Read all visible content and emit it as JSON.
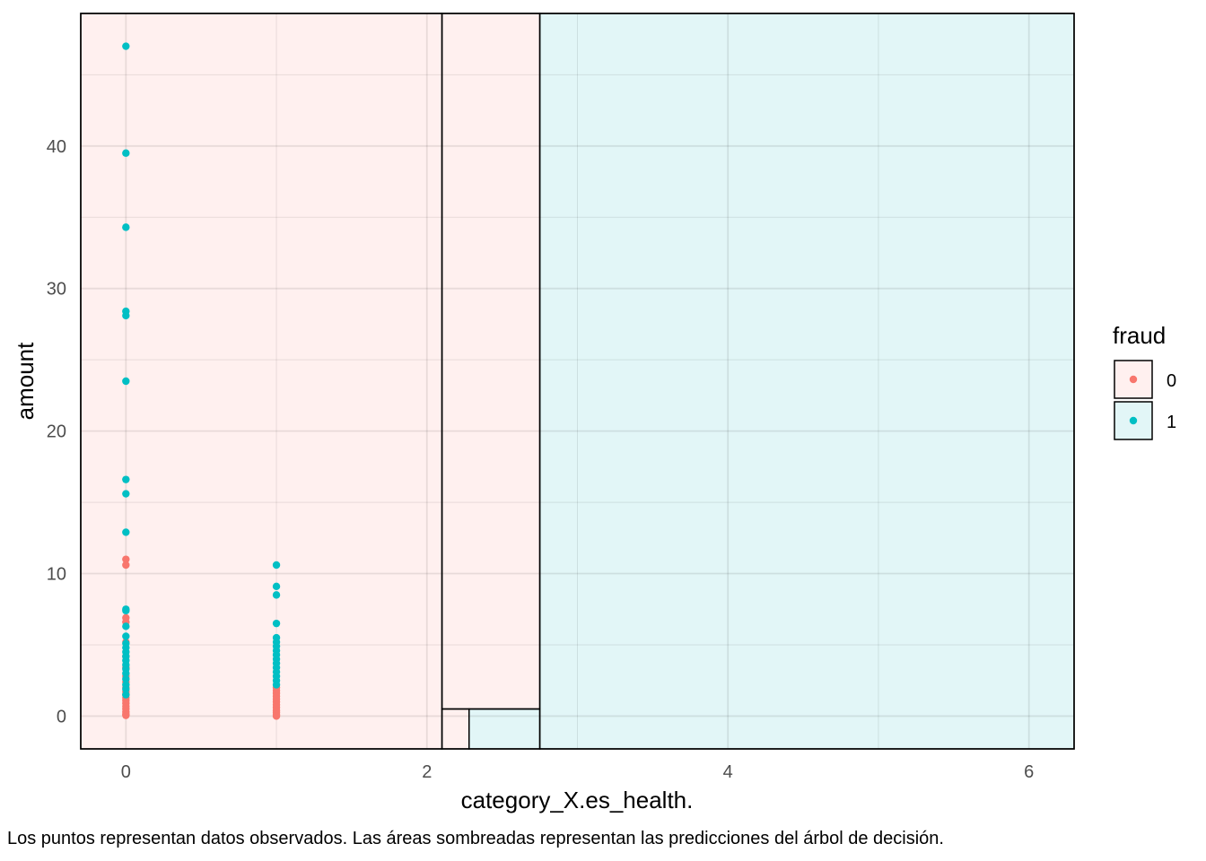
{
  "chart_data": {
    "type": "scatter",
    "xlabel": "category_X.es_health.",
    "ylabel": "amount",
    "caption": "Los puntos representan datos observados. Las áreas sombreadas representan las predicciones del árbol de decisión.",
    "xlim": [
      -0.3,
      6.3
    ],
    "ylim": [
      -2.3,
      49.3
    ],
    "x_ticks": [
      0,
      2,
      4,
      6
    ],
    "y_ticks": [
      0,
      10,
      20,
      30,
      40
    ],
    "grid": true,
    "legend": {
      "title": "fraud",
      "position": "right",
      "entries": [
        {
          "label": "0",
          "color": "#F8766D",
          "fill": "#FFF0EF"
        },
        {
          "label": "1",
          "color": "#00BFC4",
          "fill": "#E2F6F7"
        }
      ]
    },
    "regions": [
      {
        "class": "0",
        "x0": -0.3,
        "x1": 2.1,
        "y0": -2.3,
        "y1": 49.3
      },
      {
        "class": "0",
        "x0": 2.1,
        "x1": 2.75,
        "y0": 0.5,
        "y1": 49.3
      },
      {
        "class": "0",
        "x0": 2.1,
        "x1": 2.28,
        "y0": -2.3,
        "y1": 0.5
      },
      {
        "class": "1",
        "x0": 2.28,
        "x1": 2.75,
        "y0": -2.3,
        "y1": 0.5
      },
      {
        "class": "1",
        "x0": 2.75,
        "x1": 6.3,
        "y0": -2.3,
        "y1": 49.3
      }
    ],
    "series": [
      {
        "name": "0",
        "color": "#F8766D",
        "points": [
          [
            0,
            11.0
          ],
          [
            0,
            10.6
          ],
          [
            0,
            6.9
          ],
          [
            0,
            6.6
          ],
          [
            0,
            5.2
          ],
          [
            0,
            4.2
          ],
          [
            0,
            3.4
          ],
          [
            0,
            2.8
          ],
          [
            0,
            2.4
          ],
          [
            0,
            2.0
          ],
          [
            0,
            1.7
          ],
          [
            0,
            1.5
          ],
          [
            0,
            1.3
          ],
          [
            0,
            1.1
          ],
          [
            0,
            0.9
          ],
          [
            0,
            0.7
          ],
          [
            0,
            0.5
          ],
          [
            0,
            0.3
          ],
          [
            0,
            0.15
          ],
          [
            0,
            0.05
          ],
          [
            1,
            2.0
          ],
          [
            1,
            1.8
          ],
          [
            1,
            1.6
          ],
          [
            1,
            1.4
          ],
          [
            1,
            1.2
          ],
          [
            1,
            1.0
          ],
          [
            1,
            0.8
          ],
          [
            1,
            0.6
          ],
          [
            1,
            0.4
          ],
          [
            1,
            0.25
          ],
          [
            1,
            0.1
          ],
          [
            1,
            0.0
          ]
        ]
      },
      {
        "name": "1",
        "color": "#00BFC4",
        "points": [
          [
            0,
            47.0
          ],
          [
            0,
            39.5
          ],
          [
            0,
            34.3
          ],
          [
            0,
            28.4
          ],
          [
            0,
            28.1
          ],
          [
            0,
            23.5
          ],
          [
            0,
            16.6
          ],
          [
            0,
            15.6
          ],
          [
            0,
            12.9
          ],
          [
            0,
            7.5
          ],
          [
            0,
            7.4
          ],
          [
            0,
            6.3
          ],
          [
            0,
            5.6
          ],
          [
            0,
            5.1
          ],
          [
            0,
            4.8
          ],
          [
            0,
            4.5
          ],
          [
            0,
            4.2
          ],
          [
            0,
            3.9
          ],
          [
            0,
            3.6
          ],
          [
            0,
            3.3
          ],
          [
            0,
            3.0
          ],
          [
            0,
            2.6
          ],
          [
            0,
            2.2
          ],
          [
            0,
            1.9
          ],
          [
            0,
            1.5
          ],
          [
            1,
            10.6
          ],
          [
            1,
            9.1
          ],
          [
            1,
            8.5
          ],
          [
            1,
            6.5
          ],
          [
            1,
            5.5
          ],
          [
            1,
            5.2
          ],
          [
            1,
            4.9
          ],
          [
            1,
            4.6
          ],
          [
            1,
            4.3
          ],
          [
            1,
            4.0
          ],
          [
            1,
            3.7
          ],
          [
            1,
            3.4
          ],
          [
            1,
            3.1
          ],
          [
            1,
            2.8
          ],
          [
            1,
            2.5
          ],
          [
            1,
            2.2
          ]
        ]
      }
    ]
  }
}
